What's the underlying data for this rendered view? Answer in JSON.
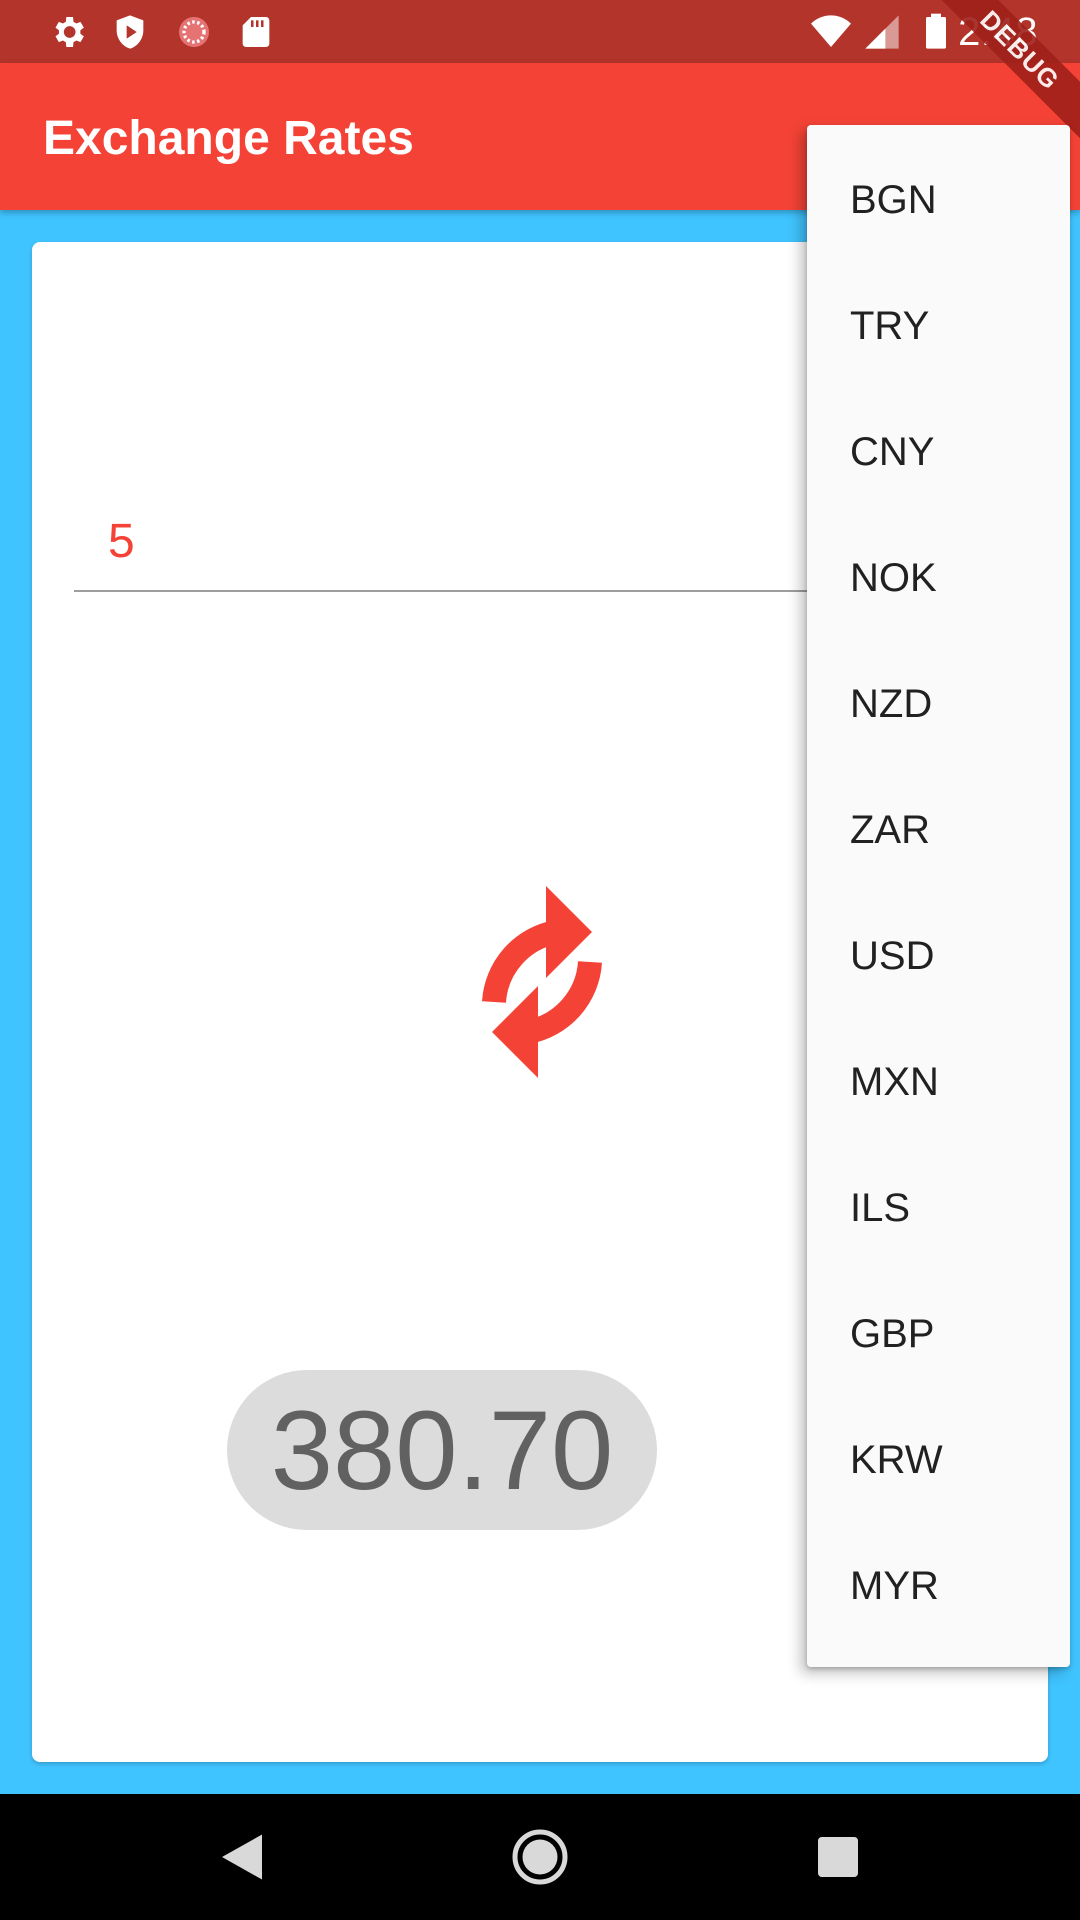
{
  "status_bar": {
    "time": "2:48",
    "left_icons": [
      "gear-icon",
      "shield-icon",
      "spinner-icon",
      "sd-card-icon"
    ],
    "right_icons": [
      "wifi-icon",
      "signal-icon",
      "battery-icon"
    ]
  },
  "app_bar": {
    "title": "Exchange Rates"
  },
  "debug_banner": {
    "label": "DEBUG"
  },
  "card": {
    "amount_value": "5",
    "result": "380.70"
  },
  "menu": {
    "items": [
      {
        "label": "BGN"
      },
      {
        "label": "TRY"
      },
      {
        "label": "CNY"
      },
      {
        "label": "NOK"
      },
      {
        "label": "NZD"
      },
      {
        "label": "ZAR"
      },
      {
        "label": "USD"
      },
      {
        "label": "MXN"
      },
      {
        "label": "ILS"
      },
      {
        "label": "GBP"
      },
      {
        "label": "KRW"
      },
      {
        "label": "MYR"
      }
    ]
  },
  "colors": {
    "primary": "#f44336",
    "status_bar": "#b3342b",
    "background": "#40c4ff",
    "result_pill": "#dcdcdc"
  }
}
